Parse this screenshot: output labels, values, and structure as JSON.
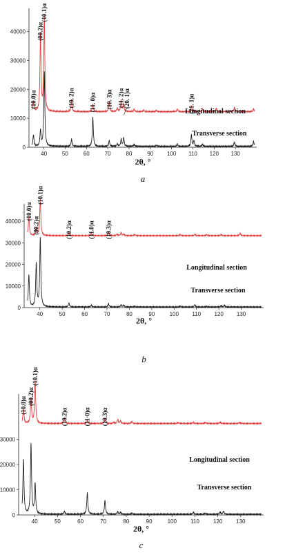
{
  "chart_data": [
    {
      "panel": "a",
      "type": "line",
      "xlabel": "2θ, °",
      "ylabel": "",
      "xlim": [
        33,
        140
      ],
      "ylim": [
        0,
        48000
      ],
      "x_ticks": [
        40,
        50,
        60,
        70,
        80,
        90,
        100,
        110,
        120,
        130
      ],
      "y_ticks": [
        0,
        10000,
        20000,
        30000,
        40000
      ],
      "series": [
        {
          "name": "Longitudinal section",
          "color": "#e03b3b",
          "baseline": 12000,
          "peaks": [
            {
              "x": 35.1,
              "h": 3500
            },
            {
              "x": 38.4,
              "h": 27000
            },
            {
              "x": 40.2,
              "h": 33000
            },
            {
              "x": 53.0,
              "h": 4200
            },
            {
              "x": 63.0,
              "h": 2500
            },
            {
              "x": 70.7,
              "h": 3500
            },
            {
              "x": 74.5,
              "h": 1200
            },
            {
              "x": 76.3,
              "h": 4000
            },
            {
              "x": 77.5,
              "h": 2500
            },
            {
              "x": 82.4,
              "h": 800
            },
            {
              "x": 86.9,
              "h": 600
            },
            {
              "x": 92.9,
              "h": 500
            },
            {
              "x": 102.7,
              "h": 900
            },
            {
              "x": 109.3,
              "h": 2000
            },
            {
              "x": 114.5,
              "h": 900
            },
            {
              "x": 121.0,
              "h": 1200
            },
            {
              "x": 129.5,
              "h": 1500
            },
            {
              "x": 138.5,
              "h": 1000
            }
          ]
        },
        {
          "name": "Transverse section",
          "color": "#222222",
          "baseline": 0,
          "peaks": [
            {
              "x": 35.1,
              "h": 4000
            },
            {
              "x": 38.4,
              "h": 5500
            },
            {
              "x": 40.2,
              "h": 26000
            },
            {
              "x": 53.0,
              "h": 2500
            },
            {
              "x": 63.0,
              "h": 10000
            },
            {
              "x": 70.7,
              "h": 2000
            },
            {
              "x": 74.5,
              "h": 900
            },
            {
              "x": 76.3,
              "h": 2500
            },
            {
              "x": 77.5,
              "h": 3000
            },
            {
              "x": 82.4,
              "h": 700
            },
            {
              "x": 92.9,
              "h": 400
            },
            {
              "x": 102.7,
              "h": 800
            },
            {
              "x": 109.3,
              "h": 4000
            },
            {
              "x": 110.5,
              "h": 2000
            },
            {
              "x": 114.5,
              "h": 800
            },
            {
              "x": 129.5,
              "h": 1500
            },
            {
              "x": 138.5,
              "h": 1800
            }
          ]
        }
      ],
      "annotations": [
        {
          "text": "(10.0)α",
          "x": 35.1,
          "y": 16500
        },
        {
          "text": "(00.2)α",
          "x": 38.4,
          "y": 40000
        },
        {
          "text": "(10.1)α",
          "x": 40.2,
          "y": 46500
        },
        {
          "text": "(10. 2)α",
          "x": 53.0,
          "y": 17000
        },
        {
          "text": "(11. 0)α",
          "x": 63.0,
          "y": 15500
        },
        {
          "text": "(10. 3)α",
          "x": 70.7,
          "y": 16500
        },
        {
          "text": "(11. 2)α",
          "x": 76.3,
          "y": 17000
        },
        {
          "text": "(20. 1)α",
          "x": 79.0,
          "y": 16800
        },
        {
          "text": "(21. 1)α",
          "x": 109.3,
          "y": 15000
        }
      ]
    },
    {
      "panel": "b",
      "type": "line",
      "xlabel": "2θ, °",
      "ylabel": "",
      "xlim": [
        33,
        140
      ],
      "ylim": [
        0,
        48000
      ],
      "x_ticks": [
        40,
        50,
        60,
        70,
        80,
        90,
        100,
        110,
        120,
        130
      ],
      "y_ticks": [
        0,
        10000,
        20000,
        30000,
        40000
      ],
      "series": [
        {
          "name": "Longitudinal section",
          "color": "#e03b3b",
          "baseline": 33000,
          "peaks": [
            {
              "x": 35.1,
              "h": 9000
            },
            {
              "x": 38.4,
              "h": 3500
            },
            {
              "x": 40.2,
              "h": 17000
            },
            {
              "x": 53.0,
              "h": 1500
            },
            {
              "x": 63.0,
              "h": 1200
            },
            {
              "x": 70.7,
              "h": 1800
            },
            {
              "x": 74.5,
              "h": 700
            },
            {
              "x": 76.3,
              "h": 1400
            },
            {
              "x": 77.5,
              "h": 700
            },
            {
              "x": 82.4,
              "h": 500
            },
            {
              "x": 102.7,
              "h": 500
            },
            {
              "x": 109.3,
              "h": 600
            },
            {
              "x": 114.5,
              "h": 500
            },
            {
              "x": 121.0,
              "h": 500
            },
            {
              "x": 129.5,
              "h": 1200
            }
          ]
        },
        {
          "name": "Transverse section",
          "color": "#222222",
          "baseline": 0,
          "peaks": [
            {
              "x": 35.1,
              "h": 15000
            },
            {
              "x": 38.4,
              "h": 20000
            },
            {
              "x": 40.2,
              "h": 32000
            },
            {
              "x": 53.0,
              "h": 1800
            },
            {
              "x": 63.0,
              "h": 900
            },
            {
              "x": 70.7,
              "h": 1500
            },
            {
              "x": 76.3,
              "h": 1000
            },
            {
              "x": 77.5,
              "h": 800
            },
            {
              "x": 82.4,
              "h": 300
            },
            {
              "x": 102.7,
              "h": 400
            },
            {
              "x": 109.3,
              "h": 1000
            },
            {
              "x": 114.5,
              "h": 300
            },
            {
              "x": 121.0,
              "h": 600
            },
            {
              "x": 122.5,
              "h": 800
            }
          ]
        }
      ],
      "annotations": [
        {
          "text": "(10.0)α",
          "x": 35.1,
          "y": 44500
        },
        {
          "text": "(00.2)α",
          "x": 38.4,
          "y": 38000
        },
        {
          "text": "(10.1)α",
          "x": 40.2,
          "y": 52000
        },
        {
          "text": "(10.2)α",
          "x": 53.0,
          "y": 36000
        },
        {
          "text": "(11.0)α",
          "x": 63.0,
          "y": 36000
        },
        {
          "text": "(10.3)α",
          "x": 70.7,
          "y": 36000
        }
      ]
    },
    {
      "panel": "c",
      "type": "line",
      "xlabel": "2θ, °",
      "ylabel": "",
      "xlim": [
        33,
        140
      ],
      "ylim": [
        0,
        48000
      ],
      "x_ticks": [
        40,
        50,
        60,
        70,
        80,
        90,
        100,
        110,
        120,
        130
      ],
      "y_ticks": [
        0,
        10000,
        20000,
        30000
      ],
      "series": [
        {
          "name": "Longitudinal section",
          "color": "#e03b3b",
          "baseline": 36000,
          "peaks": [
            {
              "x": 35.1,
              "h": 6000
            },
            {
              "x": 38.4,
              "h": 10000
            },
            {
              "x": 40.2,
              "h": 17000
            },
            {
              "x": 53.0,
              "h": 2000
            },
            {
              "x": 63.0,
              "h": 1200
            },
            {
              "x": 70.7,
              "h": 2000
            },
            {
              "x": 74.5,
              "h": 500
            },
            {
              "x": 76.3,
              "h": 1500
            },
            {
              "x": 77.5,
              "h": 1000
            },
            {
              "x": 82.4,
              "h": 800
            },
            {
              "x": 102.7,
              "h": 400
            },
            {
              "x": 109.3,
              "h": 500
            },
            {
              "x": 114.5,
              "h": 400
            },
            {
              "x": 121.0,
              "h": 500
            },
            {
              "x": 129.5,
              "h": 400
            }
          ]
        },
        {
          "name": "Transverse section",
          "color": "#222222",
          "baseline": 0,
          "peaks": [
            {
              "x": 35.1,
              "h": 22000
            },
            {
              "x": 38.4,
              "h": 28000
            },
            {
              "x": 40.2,
              "h": 12000
            },
            {
              "x": 53.0,
              "h": 1200
            },
            {
              "x": 63.0,
              "h": 8500
            },
            {
              "x": 70.7,
              "h": 5500
            },
            {
              "x": 76.3,
              "h": 1000
            },
            {
              "x": 77.5,
              "h": 700
            },
            {
              "x": 82.4,
              "h": 400
            },
            {
              "x": 109.3,
              "h": 800
            },
            {
              "x": 114.5,
              "h": 400
            },
            {
              "x": 121.0,
              "h": 800
            },
            {
              "x": 122.5,
              "h": 1200
            }
          ]
        }
      ],
      "annotations": [
        {
          "text": "(10.0)α",
          "x": 35.1,
          "y": 43500
        },
        {
          "text": "(00.2)α",
          "x": 38.4,
          "y": 47000
        },
        {
          "text": "(10.1)α",
          "x": 40.2,
          "y": 55000
        },
        {
          "text": "(10.2)α",
          "x": 53.0,
          "y": 39000
        },
        {
          "text": "(11·0)α",
          "x": 63.0,
          "y": 39000
        },
        {
          "text": "(10.3)α",
          "x": 70.7,
          "y": 39000
        }
      ]
    }
  ]
}
